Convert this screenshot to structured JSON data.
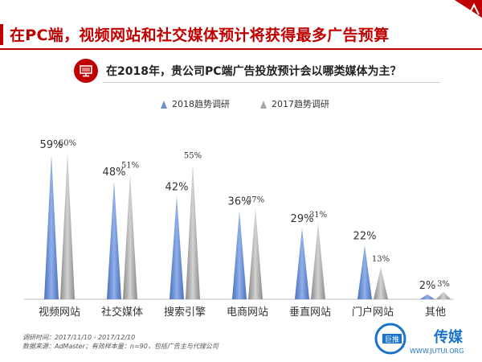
{
  "header": {
    "title": "在PC端，视频网站和社交媒体预计将获得最多广告预算"
  },
  "question": {
    "text": "在2018年，贵公司PC端广告投放预计会以哪类媒体为主？",
    "icon": "monitor-icon"
  },
  "colors": {
    "accent": "#c00000",
    "series2018": "#6f8fd0",
    "series2017": "#a6a6a6"
  },
  "chart_data": {
    "type": "bar",
    "categories": [
      "视频网站",
      "社交媒体",
      "搜索引擎",
      "电商网站",
      "垂直网站",
      "门户网站",
      "其他"
    ],
    "series": [
      {
        "name": "2018趋势调研",
        "values": [
          59,
          48,
          42,
          36,
          29,
          22,
          2
        ]
      },
      {
        "name": "2017趋势调研",
        "values": [
          60,
          51,
          55,
          37,
          31,
          13,
          3
        ]
      }
    ],
    "value_suffix": "%",
    "ylim": [
      0,
      62
    ],
    "legend_position": "top-center",
    "grid": false
  },
  "footnotes": [
    "调研时间：2017/11/10 - 2017/12/10",
    "数据来源：AdMaster；有效样本量：n=90，包括广告主与代理公司"
  ],
  "watermark": {
    "brand": "巨推",
    "name": "传媒",
    "url": "WWW.JUTUI.ORG"
  }
}
